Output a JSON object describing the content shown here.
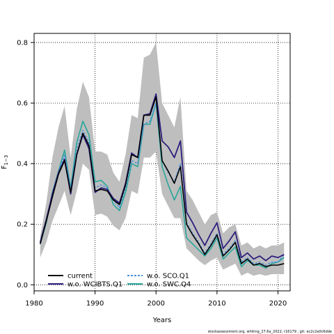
{
  "chart_data": {
    "type": "line",
    "xlabel": "Years",
    "ylabel": "F1-3",
    "ylabel_main": "F",
    "ylabel_sub": "1−3",
    "xlim": [
      1980,
      2022
    ],
    "ylim": [
      -0.02,
      0.83
    ],
    "x_ticks": [
      1980,
      1990,
      2000,
      2010,
      2020
    ],
    "y_ticks": [
      0.0,
      0.2,
      0.4,
      0.6,
      0.8
    ],
    "x_tick_labels": [
      "1980",
      "1990",
      "2000",
      "2010",
      "2020"
    ],
    "y_tick_labels": [
      "0.0",
      "0.2",
      "0.4",
      "0.6",
      "0.8"
    ],
    "grid": "dotted, at major ticks",
    "legend_position": "bottom-left",
    "x": [
      1981,
      1982,
      1983,
      1984,
      1985,
      1986,
      1987,
      1988,
      1989,
      1990,
      1991,
      1992,
      1993,
      1994,
      1995,
      1996,
      1997,
      1998,
      1999,
      2000,
      2001,
      2002,
      2003,
      2004,
      2005,
      2006,
      2007,
      2008,
      2009,
      2010,
      2011,
      2012,
      2013,
      2014,
      2015,
      2016,
      2017,
      2018,
      2019,
      2020,
      2021
    ],
    "confidence_band": {
      "lower": [
        0.09,
        0.14,
        0.21,
        0.26,
        0.31,
        0.23,
        0.31,
        0.4,
        0.38,
        0.23,
        0.235,
        0.225,
        0.195,
        0.18,
        0.22,
        0.31,
        0.3,
        0.42,
        0.42,
        0.44,
        0.3,
        0.26,
        0.22,
        0.22,
        0.12,
        0.1,
        0.08,
        0.065,
        0.08,
        0.09,
        0.05,
        0.06,
        0.07,
        0.03,
        0.04,
        0.03,
        0.035,
        0.03,
        0.035,
        0.035,
        0.035
      ],
      "upper": [
        0.16,
        0.27,
        0.42,
        0.52,
        0.59,
        0.42,
        0.58,
        0.67,
        0.62,
        0.44,
        0.44,
        0.43,
        0.37,
        0.34,
        0.43,
        0.56,
        0.55,
        0.75,
        0.76,
        0.8,
        0.6,
        0.56,
        0.52,
        0.62,
        0.31,
        0.28,
        0.24,
        0.2,
        0.23,
        0.24,
        0.17,
        0.19,
        0.2,
        0.13,
        0.14,
        0.12,
        0.13,
        0.12,
        0.13,
        0.13,
        0.14
      ],
      "color": "#bebebe"
    },
    "series": [
      {
        "name": "current",
        "color": "#000000",
        "dash": "solid",
        "width": 1.6,
        "values": [
          0.135,
          0.21,
          0.29,
          0.365,
          0.41,
          0.305,
          0.43,
          0.5,
          0.46,
          0.31,
          0.315,
          0.31,
          0.28,
          0.265,
          0.33,
          0.43,
          0.42,
          0.56,
          0.56,
          0.62,
          0.41,
          0.375,
          0.335,
          0.39,
          0.2,
          0.165,
          0.135,
          0.1,
          0.13,
          0.165,
          0.095,
          0.115,
          0.14,
          0.07,
          0.085,
          0.065,
          0.07,
          0.06,
          0.065,
          0.065,
          0.07
        ]
      },
      {
        "name": "w.o. WCIBTS.Q1",
        "color": "#2d1e7e",
        "dash": "solid",
        "width": 1.8,
        "values": [
          0.14,
          0.215,
          0.3,
          0.37,
          0.415,
          0.3,
          0.43,
          0.495,
          0.45,
          0.305,
          0.32,
          0.315,
          0.285,
          0.27,
          0.335,
          0.435,
          0.42,
          0.56,
          0.565,
          0.63,
          0.475,
          0.455,
          0.42,
          0.475,
          0.24,
          0.205,
          0.165,
          0.13,
          0.17,
          0.205,
          0.12,
          0.145,
          0.175,
          0.09,
          0.105,
          0.085,
          0.095,
          0.08,
          0.095,
          0.09,
          0.1
        ]
      },
      {
        "name": "w.o. SCO.Q1",
        "color": "#4a90d9",
        "dash": "dashed",
        "width": 1.5,
        "values": [
          0.135,
          0.21,
          0.29,
          0.37,
          0.43,
          0.32,
          0.45,
          0.51,
          0.47,
          0.32,
          0.33,
          0.32,
          0.28,
          0.255,
          0.32,
          0.41,
          0.4,
          0.53,
          0.54,
          0.6,
          0.41,
          0.37,
          0.34,
          0.4,
          0.205,
          0.17,
          0.14,
          0.105,
          0.135,
          0.17,
          0.1,
          0.12,
          0.145,
          0.075,
          0.09,
          0.07,
          0.075,
          0.065,
          0.075,
          0.075,
          0.1
        ]
      },
      {
        "name": "w.o. SWC.Q4",
        "color": "#26a69a",
        "dash": "solid",
        "width": 1.6,
        "values": [
          0.135,
          0.205,
          0.305,
          0.375,
          0.445,
          0.32,
          0.47,
          0.54,
          0.495,
          0.34,
          0.345,
          0.325,
          0.265,
          0.245,
          0.305,
          0.4,
          0.39,
          0.53,
          0.53,
          0.6,
          0.39,
          0.33,
          0.28,
          0.325,
          0.155,
          0.135,
          0.115,
          0.095,
          0.12,
          0.155,
          0.085,
          0.105,
          0.125,
          0.06,
          0.08,
          0.065,
          0.065,
          0.055,
          0.07,
          0.075,
          0.09
        ]
      }
    ]
  },
  "footer": "stockassessment.org, whiting_27.6a_2022, r16179 , git: ec2c2a0c6dde"
}
